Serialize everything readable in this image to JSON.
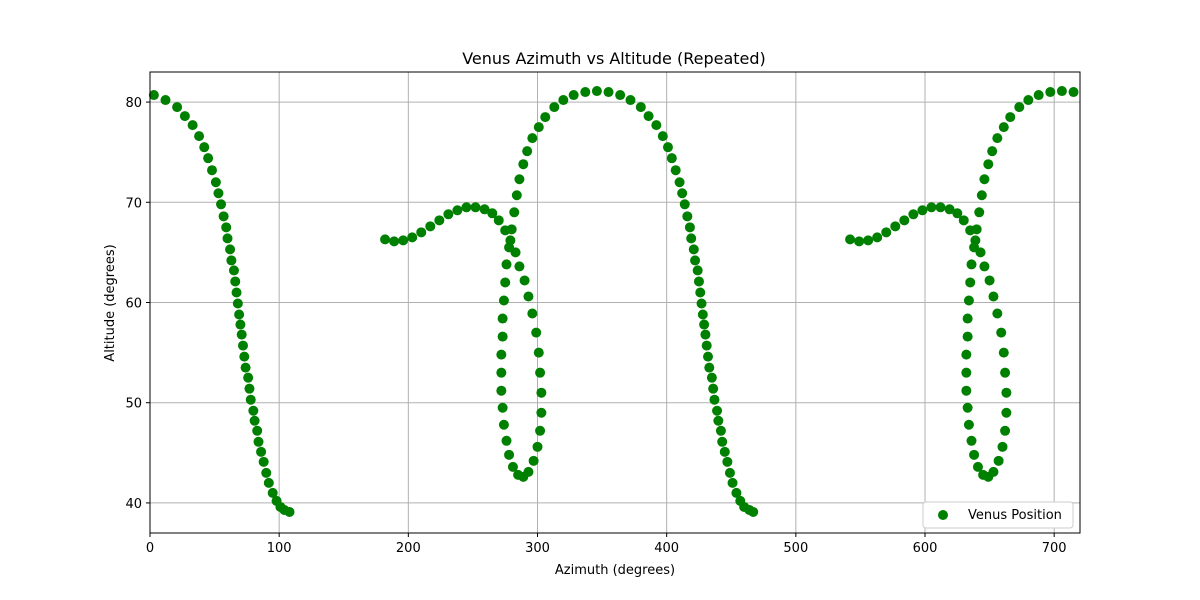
{
  "chart_data": {
    "type": "scatter",
    "title": "Venus Azimuth vs Altitude (Repeated)",
    "xlabel": "Azimuth (degrees)",
    "ylabel": "Altitude (degrees)",
    "xlim": [
      0,
      720
    ],
    "ylim": [
      37,
      83
    ],
    "xticks": [
      0,
      100,
      200,
      300,
      400,
      500,
      600,
      700
    ],
    "yticks": [
      40,
      50,
      60,
      70,
      80
    ],
    "grid": true,
    "legend_position": "lower-right",
    "color": "#008000",
    "series": [
      {
        "name": "Venus Position",
        "points": [
          [
            3,
            80.7
          ],
          [
            12,
            80.2
          ],
          [
            21,
            79.5
          ],
          [
            27,
            78.6
          ],
          [
            33,
            77.7
          ],
          [
            38,
            76.6
          ],
          [
            42,
            75.5
          ],
          [
            45,
            74.4
          ],
          [
            48,
            73.2
          ],
          [
            51,
            72.0
          ],
          [
            53,
            70.9
          ],
          [
            55,
            69.8
          ],
          [
            57,
            68.6
          ],
          [
            59,
            67.5
          ],
          [
            60,
            66.4
          ],
          [
            62,
            65.3
          ],
          [
            63,
            64.2
          ],
          [
            65,
            63.2
          ],
          [
            66,
            62.1
          ],
          [
            67,
            61.0
          ],
          [
            68,
            59.9
          ],
          [
            69,
            58.8
          ],
          [
            70,
            57.8
          ],
          [
            71,
            56.8
          ],
          [
            72,
            55.7
          ],
          [
            73,
            54.6
          ],
          [
            74,
            53.5
          ],
          [
            76,
            52.5
          ],
          [
            77,
            51.4
          ],
          [
            78,
            50.3
          ],
          [
            80,
            49.2
          ],
          [
            81,
            48.2
          ],
          [
            83,
            47.2
          ],
          [
            84,
            46.1
          ],
          [
            86,
            45.1
          ],
          [
            88,
            44.1
          ],
          [
            90,
            43.0
          ],
          [
            92,
            42.0
          ],
          [
            95,
            41.0
          ],
          [
            98,
            40.2
          ],
          [
            101,
            39.6
          ],
          [
            104,
            39.3
          ],
          [
            108,
            39.1
          ],
          [
            182,
            66.3
          ],
          [
            189,
            66.1
          ],
          [
            196,
            66.2
          ],
          [
            203,
            66.5
          ],
          [
            210,
            67.0
          ],
          [
            217,
            67.6
          ],
          [
            224,
            68.2
          ],
          [
            231,
            68.8
          ],
          [
            238,
            69.2
          ],
          [
            245,
            69.5
          ],
          [
            252,
            69.5
          ],
          [
            259,
            69.3
          ],
          [
            265,
            68.9
          ],
          [
            270,
            68.2
          ],
          [
            275,
            67.2
          ],
          [
            279,
            66.2
          ],
          [
            283,
            65.0
          ],
          [
            286,
            63.6
          ],
          [
            290,
            62.2
          ],
          [
            293,
            60.6
          ],
          [
            296,
            58.9
          ],
          [
            299,
            57.0
          ],
          [
            301,
            55.0
          ],
          [
            302,
            53.0
          ],
          [
            303,
            51.0
          ],
          [
            303,
            49.0
          ],
          [
            302,
            47.2
          ],
          [
            300,
            45.6
          ],
          [
            297,
            44.2
          ],
          [
            293,
            43.1
          ],
          [
            289,
            42.6
          ],
          [
            285,
            42.8
          ],
          [
            281,
            43.6
          ],
          [
            278,
            44.8
          ],
          [
            276,
            46.2
          ],
          [
            274,
            47.8
          ],
          [
            273,
            49.5
          ],
          [
            272,
            51.2
          ],
          [
            272,
            53.0
          ],
          [
            272,
            54.8
          ],
          [
            273,
            56.6
          ],
          [
            273,
            58.4
          ],
          [
            274,
            60.2
          ],
          [
            275,
            62.0
          ],
          [
            276,
            63.8
          ],
          [
            278,
            65.5
          ],
          [
            280,
            67.3
          ],
          [
            282,
            69.0
          ],
          [
            284,
            70.7
          ],
          [
            286,
            72.3
          ],
          [
            289,
            73.8
          ],
          [
            292,
            75.1
          ],
          [
            296,
            76.4
          ],
          [
            301,
            77.5
          ],
          [
            306,
            78.5
          ],
          [
            313,
            79.5
          ],
          [
            320,
            80.2
          ],
          [
            328,
            80.7
          ],
          [
            337,
            81.0
          ],
          [
            346,
            81.1
          ],
          [
            355,
            81.0
          ],
          [
            364,
            80.7
          ],
          [
            372,
            80.2
          ],
          [
            380,
            79.5
          ],
          [
            386,
            78.6
          ],
          [
            392,
            77.7
          ],
          [
            397,
            76.6
          ],
          [
            401,
            75.5
          ],
          [
            404,
            74.4
          ],
          [
            407,
            73.2
          ],
          [
            410,
            72.0
          ],
          [
            412,
            70.9
          ],
          [
            414,
            69.8
          ],
          [
            416,
            68.6
          ],
          [
            418,
            67.5
          ],
          [
            419,
            66.4
          ],
          [
            421,
            65.3
          ],
          [
            422,
            64.2
          ],
          [
            424,
            63.2
          ],
          [
            425,
            62.1
          ],
          [
            426,
            61.0
          ],
          [
            427,
            59.9
          ],
          [
            428,
            58.8
          ],
          [
            429,
            57.8
          ],
          [
            430,
            56.8
          ],
          [
            431,
            55.7
          ],
          [
            432,
            54.6
          ],
          [
            433,
            53.5
          ],
          [
            435,
            52.5
          ],
          [
            436,
            51.4
          ],
          [
            437,
            50.3
          ],
          [
            439,
            49.2
          ],
          [
            440,
            48.2
          ],
          [
            442,
            47.2
          ],
          [
            443,
            46.1
          ],
          [
            445,
            45.1
          ],
          [
            447,
            44.1
          ],
          [
            449,
            43.0
          ],
          [
            451,
            42.0
          ],
          [
            454,
            41.0
          ],
          [
            457,
            40.2
          ],
          [
            460,
            39.6
          ],
          [
            464,
            39.3
          ],
          [
            467,
            39.1
          ],
          [
            542,
            66.3
          ],
          [
            549,
            66.1
          ],
          [
            556,
            66.2
          ],
          [
            563,
            66.5
          ],
          [
            570,
            67.0
          ],
          [
            577,
            67.6
          ],
          [
            584,
            68.2
          ],
          [
            591,
            68.8
          ],
          [
            598,
            69.2
          ],
          [
            605,
            69.5
          ],
          [
            612,
            69.5
          ],
          [
            619,
            69.3
          ],
          [
            625,
            68.9
          ],
          [
            630,
            68.2
          ],
          [
            635,
            67.2
          ],
          [
            639,
            66.2
          ],
          [
            643,
            65.0
          ],
          [
            646,
            63.6
          ],
          [
            650,
            62.2
          ],
          [
            653,
            60.6
          ],
          [
            656,
            58.9
          ],
          [
            659,
            57.0
          ],
          [
            661,
            55.0
          ],
          [
            662,
            53.0
          ],
          [
            663,
            51.0
          ],
          [
            663,
            49.0
          ],
          [
            662,
            47.2
          ],
          [
            660,
            45.6
          ],
          [
            657,
            44.2
          ],
          [
            653,
            43.1
          ],
          [
            649,
            42.6
          ],
          [
            645,
            42.8
          ],
          [
            641,
            43.6
          ],
          [
            638,
            44.8
          ],
          [
            636,
            46.2
          ],
          [
            634,
            47.8
          ],
          [
            633,
            49.5
          ],
          [
            632,
            51.2
          ],
          [
            632,
            53.0
          ],
          [
            632,
            54.8
          ],
          [
            633,
            56.6
          ],
          [
            633,
            58.4
          ],
          [
            634,
            60.2
          ],
          [
            635,
            62.0
          ],
          [
            636,
            63.8
          ],
          [
            638,
            65.5
          ],
          [
            640,
            67.3
          ],
          [
            642,
            69.0
          ],
          [
            644,
            70.7
          ],
          [
            646,
            72.3
          ],
          [
            649,
            73.8
          ],
          [
            652,
            75.1
          ],
          [
            656,
            76.4
          ],
          [
            661,
            77.5
          ],
          [
            666,
            78.5
          ],
          [
            673,
            79.5
          ],
          [
            680,
            80.2
          ],
          [
            688,
            80.7
          ],
          [
            697,
            81.0
          ],
          [
            706,
            81.1
          ],
          [
            715,
            81.0
          ]
        ]
      }
    ]
  }
}
